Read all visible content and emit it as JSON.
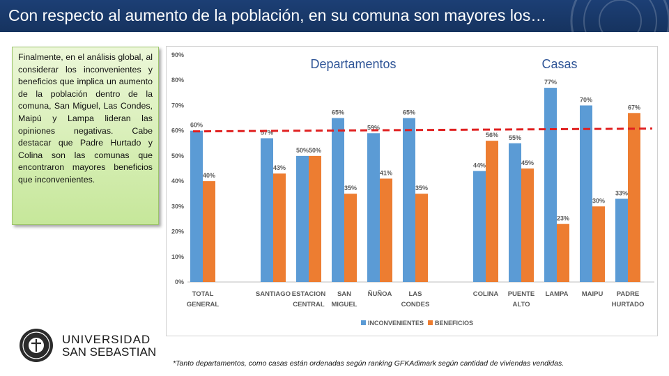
{
  "header": {
    "title": "Con respecto al aumento de la población, en su comuna son mayores los…"
  },
  "note": {
    "text": "Finalmente, en el análisis global, al considerar los inconvenientes y beneficios que implica un aumento de la población dentro de la comuna, San Miguel, Las Condes, Maipú y Lampa lideran las opiniones negativas. Cabe destacar que Padre Hurtado y Colina son las comunas que encontraron mayores beneficios que inconvenientes."
  },
  "logo": {
    "line1": "UNIVERSIDAD",
    "line2": "SAN SEBASTIAN"
  },
  "footnote": "*Tanto departamentos, como casas están ordenadas según ranking GFKAdimark según cantidad de viviendas vendidas.",
  "chart_data": {
    "type": "bar",
    "categories": [
      [
        "TOTAL",
        "GENERAL"
      ],
      [
        "SANTIAGO"
      ],
      [
        "ESTACION",
        "CENTRAL"
      ],
      [
        "SAN",
        "MIGUEL"
      ],
      [
        "ÑUÑOA"
      ],
      [
        "LAS",
        "CONDES"
      ],
      [
        "COLINA"
      ],
      [
        "PUENTE",
        "ALTO"
      ],
      [
        "LAMPA"
      ],
      [
        "MAIPU"
      ],
      [
        "PADRE",
        "HURTADO"
      ]
    ],
    "series": [
      {
        "name": "INCONVENIENTES",
        "color": "#5b9bd5",
        "values": [
          60,
          57,
          50,
          65,
          59,
          65,
          44,
          55,
          77,
          70,
          33
        ]
      },
      {
        "name": "BENEFICIOS",
        "color": "#ed7d31",
        "values": [
          40,
          43,
          50,
          35,
          41,
          35,
          56,
          45,
          23,
          30,
          67
        ]
      }
    ],
    "ylim": [
      0,
      90
    ],
    "yticks": [
      "0%",
      "10%",
      "20%",
      "30%",
      "40%",
      "50%",
      "60%",
      "70%",
      "80%",
      "90%"
    ],
    "group_labels": [
      "Departamentos",
      "Casas"
    ],
    "reference_line": {
      "value": 60,
      "color": "#e02020",
      "style": "dashed"
    },
    "legend_position": "bottom",
    "grid": false
  }
}
